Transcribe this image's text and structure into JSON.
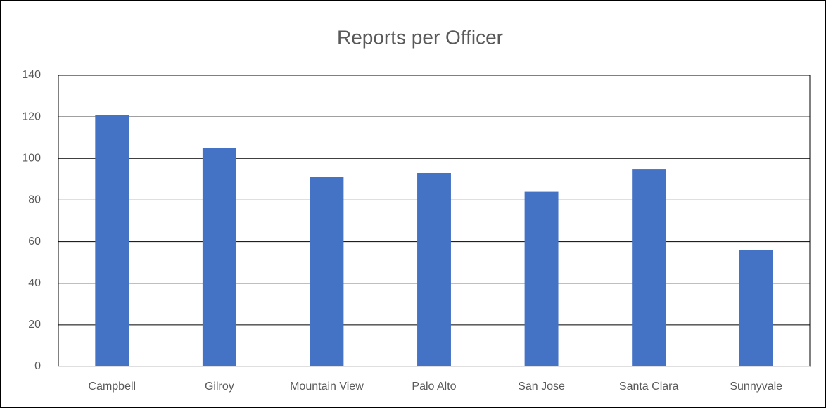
{
  "chart_data": {
    "type": "bar",
    "title": "Reports per Officer",
    "categories": [
      "Campbell",
      "Gilroy",
      "Mountain View",
      "Palo Alto",
      "San Jose",
      "Santa Clara",
      "Sunnyvale"
    ],
    "values": [
      121,
      105,
      91,
      93,
      84,
      95,
      56
    ],
    "color": "#4472c4",
    "ylim": [
      0,
      140
    ],
    "yticks": [
      0,
      20,
      40,
      60,
      80,
      100,
      120,
      140
    ],
    "grid": true
  }
}
